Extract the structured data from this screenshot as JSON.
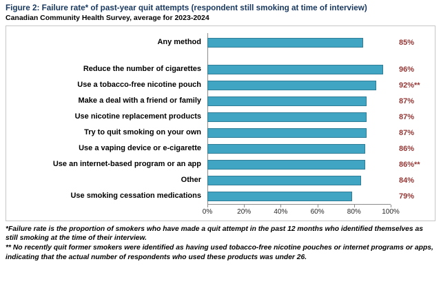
{
  "header": {
    "title": "Figure 2: Failure rate* of past-year quit attempts (respondent still smoking at time of interview)",
    "subtitle": "Canadian Community Health Survey, average for 2023-2024"
  },
  "chart_data": {
    "type": "bar",
    "orientation": "horizontal",
    "title": "Figure 2: Failure rate* of past-year quit attempts (respondent still smoking at time of interview)",
    "subtitle": "Canadian Community Health Survey, average for 2023-2024",
    "categories": [
      "Any method",
      "Reduce the number of cigarettes",
      "Use a tobacco-free nicotine pouch",
      "Make a deal with a friend or family",
      "Use nicotine replacement products",
      "Try to quit smoking on your own",
      "Use a vaping device or e-cigarette",
      "Use an internet-based program or an app",
      "Other",
      "Use smoking cessation medications"
    ],
    "values": [
      85,
      96,
      92,
      87,
      87,
      87,
      86,
      86,
      84,
      79
    ],
    "value_labels": [
      "85%",
      "96%",
      "92%**",
      "87%",
      "87%",
      "87%",
      "86%",
      "86%**",
      "84%",
      "79%"
    ],
    "gap_after_indices": [
      0
    ],
    "x_tick_labels": [
      "0%",
      "20%",
      "40%",
      "60%",
      "80%",
      "100%"
    ],
    "xlim": [
      0,
      100
    ],
    "gridlines": false,
    "legend": "none",
    "bar_color": "#3FA5C3",
    "bar_border_color": "#2E7C95",
    "value_label_color": "#943634"
  },
  "footnotes": [
    "*Failure rate is the proportion of smokers who have made a quit attempt in the past 12 months who identified themselves as still smoking at the time of their interview.",
    "** No recently quit former smokers were identified as having used tobacco-free nicotine pouches or internet programs or apps, indicating that the actual number of respondents who used these products was under 26."
  ]
}
